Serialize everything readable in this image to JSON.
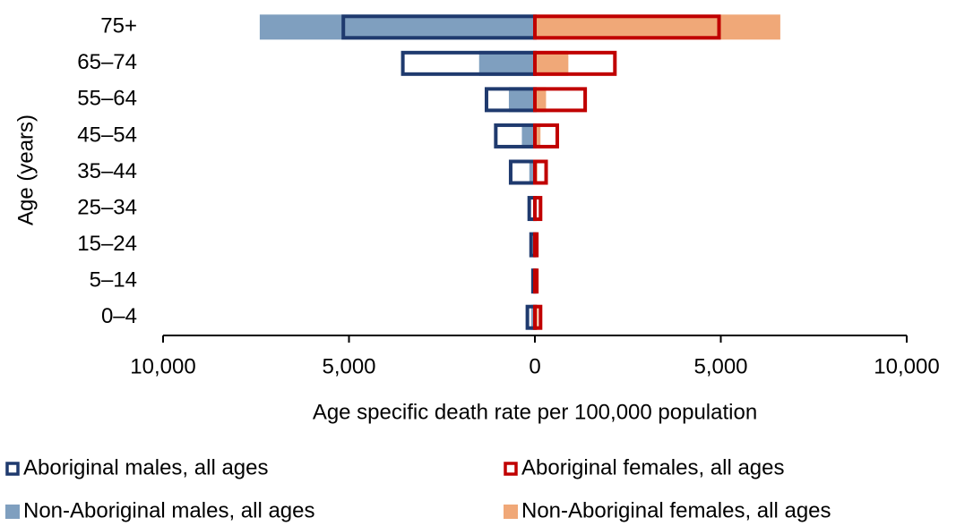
{
  "chart_data": {
    "type": "pyramid",
    "y_axis_label": "Age (years)",
    "x_axis_label": "Age specific death rate per 100,000 population",
    "categories": [
      "75+",
      "65–74",
      "55–64",
      "45–54",
      "35–44",
      "25–34",
      "15–24",
      "5–14",
      "0–4"
    ],
    "series": [
      {
        "name": "Aboriginal males, all ages",
        "color": "#1f3a6e",
        "style": "outline",
        "values": [
          -5200,
          -3600,
          -1350,
          -1100,
          -700,
          -200,
          -150,
          -100,
          -250
        ]
      },
      {
        "name": "Aboriginal females, all ages",
        "color": "#c00000",
        "style": "outline",
        "values": [
          5000,
          2200,
          1400,
          650,
          350,
          200,
          100,
          100,
          200
        ]
      },
      {
        "name": "Non-Aboriginal males, all ages",
        "color": "#7f9fbf",
        "style": "fill",
        "values": [
          -7400,
          -1500,
          -700,
          -350,
          -150,
          -50,
          -40,
          -15,
          -100
        ]
      },
      {
        "name": "Non-Aboriginal females, all ages",
        "color": "#f0a878",
        "style": "fill",
        "values": [
          6600,
          900,
          300,
          150,
          70,
          30,
          25,
          10,
          80
        ]
      }
    ],
    "xlim": [
      -10000,
      10000
    ],
    "xticks": [
      {
        "value": -10000,
        "label": "10,000"
      },
      {
        "value": -5000,
        "label": "5,000"
      },
      0,
      {
        "value": 5000,
        "label": "5,000"
      },
      {
        "value": 10000,
        "label": "10,000"
      }
    ]
  }
}
